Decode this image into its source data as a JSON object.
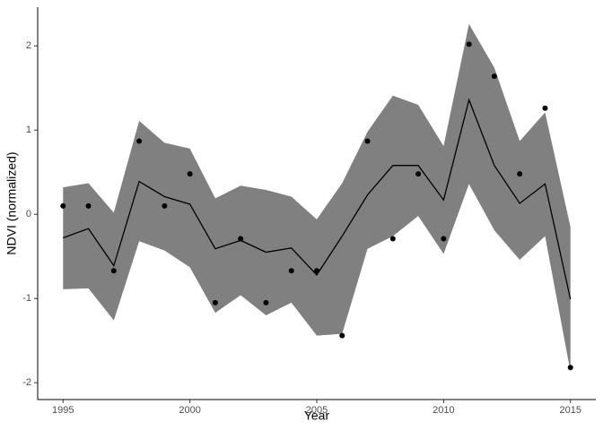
{
  "chart_data": {
    "type": "line",
    "x_label": "Year",
    "y_label": "NDVI (normalized)",
    "x": [
      1995,
      1996,
      1997,
      1998,
      1999,
      2000,
      2001,
      2002,
      2003,
      2004,
      2005,
      2006,
      2007,
      2008,
      2009,
      2010,
      2011,
      2012,
      2013,
      2014,
      2015
    ],
    "points": [
      0.1,
      0.1,
      -0.67,
      0.87,
      0.1,
      0.48,
      -1.05,
      -0.29,
      -1.05,
      -0.67,
      -0.67,
      -1.44,
      0.87,
      -0.29,
      0.48,
      -0.29,
      2.02,
      1.64,
      0.48,
      1.26,
      -1.82
    ],
    "fit": [
      -0.28,
      -0.17,
      -0.61,
      0.39,
      0.21,
      0.12,
      -0.41,
      -0.31,
      -0.45,
      -0.4,
      -0.72,
      -0.26,
      0.23,
      0.58,
      0.58,
      0.17,
      1.36,
      0.58,
      0.13,
      0.36,
      -1.01
    ],
    "ribbon_upper": [
      0.32,
      0.37,
      0.02,
      1.11,
      0.85,
      0.78,
      0.19,
      0.34,
      0.29,
      0.21,
      -0.06,
      0.37,
      0.98,
      1.41,
      1.3,
      0.81,
      2.26,
      1.74,
      0.87,
      1.21,
      -0.15
    ],
    "ribbon_lower": [
      -0.89,
      -0.88,
      -1.26,
      -0.32,
      -0.43,
      -0.63,
      -1.17,
      -0.96,
      -1.2,
      -1.05,
      -1.44,
      -1.42,
      -0.41,
      -0.26,
      -0.02,
      -0.47,
      0.36,
      -0.19,
      -0.54,
      -0.26,
      -1.87
    ],
    "point_color": "#000000",
    "line_color": "#000000",
    "ribbon_color": "#808080",
    "xlim": [
      1994,
      2016
    ],
    "ylim": [
      -2.2,
      2.46
    ],
    "xticks": [
      1995,
      2000,
      2005,
      2010,
      2015
    ],
    "yticks": [
      -2,
      -1,
      0,
      1,
      2
    ]
  }
}
